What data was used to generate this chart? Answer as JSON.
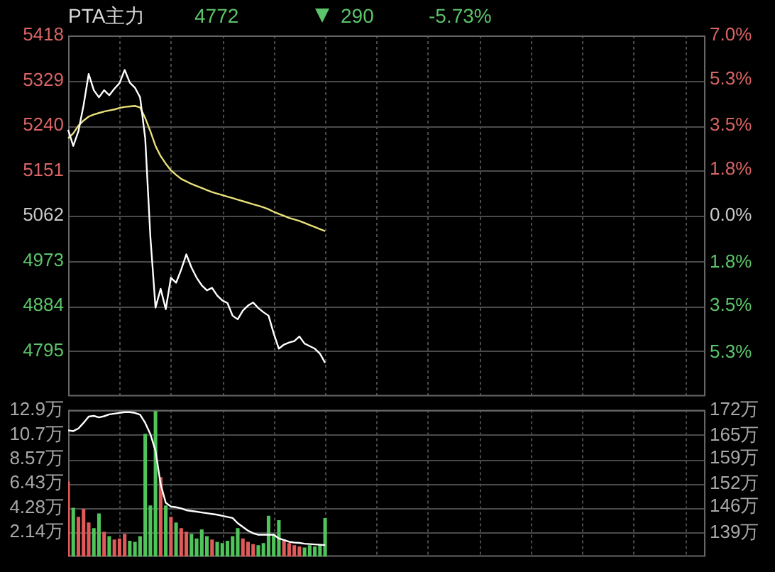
{
  "chart_data": [
    {
      "type": "line",
      "title": "PTA主力",
      "annotations": [
        "4772",
        "290",
        "-5.73%"
      ],
      "grid": true,
      "categories": [
        null,
        null,
        null,
        null,
        null,
        null,
        null,
        null,
        null,
        null,
        null,
        null,
        null,
        null,
        null,
        null,
        null,
        null,
        null,
        null,
        null,
        null,
        null,
        null,
        null,
        null,
        null,
        null,
        null,
        null,
        null,
        null,
        null,
        null,
        null,
        null,
        null,
        null,
        null,
        null,
        null,
        null,
        null,
        null,
        null,
        null,
        null,
        null,
        null,
        null,
        null,
        null,
        null,
        null,
        null,
        null,
        null,
        null,
        null,
        null,
        null,
        null,
        null,
        null,
        null,
        null,
        null,
        null,
        null,
        null,
        null,
        null,
        null,
        null,
        null,
        null,
        null,
        null,
        null,
        null,
        null,
        null,
        null,
        null,
        null,
        null,
        null,
        null,
        null,
        null,
        null,
        null,
        null,
        null,
        null,
        null,
        null,
        null,
        null,
        null,
        null,
        null,
        null,
        null,
        null,
        null,
        null,
        null,
        null,
        null,
        null,
        null,
        null,
        null,
        null,
        null,
        null,
        null,
        null,
        null,
        null,
        null,
        null,
        null,
        null
      ],
      "series": [
        {
          "color": "#ffffff",
          "values": [
            5232,
            5200,
            5229,
            5280,
            5342,
            5310,
            5296,
            5310,
            5300,
            5313,
            5324,
            5350,
            5325,
            5315,
            5296,
            5215,
            5021,
            4881,
            4918,
            4878,
            4940,
            4930,
            4956,
            4986,
            4960,
            4940,
            4925,
            4915,
            4920,
            4905,
            4895,
            4890,
            4865,
            4858,
            4875,
            4885,
            4891,
            4880,
            4872,
            4865,
            4830,
            4800,
            4808,
            4812,
            4815,
            4824,
            4810,
            4805,
            4800,
            4790,
            4772,
            null,
            null,
            null,
            null,
            null,
            null,
            null,
            null,
            null,
            null,
            null,
            null,
            null,
            null,
            null,
            null,
            null,
            null,
            null,
            null,
            null,
            null,
            null,
            null,
            null,
            null,
            null,
            null,
            null,
            null,
            null,
            null,
            null,
            null,
            null,
            null,
            null,
            null,
            null,
            null,
            null,
            null,
            null,
            null,
            null,
            null,
            null,
            null,
            null,
            null,
            null,
            null,
            null,
            null,
            null,
            null,
            null,
            null,
            null,
            null,
            null,
            null,
            null,
            null,
            null,
            null,
            null,
            null,
            null,
            null,
            null,
            null,
            null,
            null
          ]
        },
        {
          "color": "#e8e07a",
          "values": [
            5215,
            5225,
            5240,
            5250,
            5258,
            5262,
            5265,
            5268,
            5270,
            5272,
            5275,
            5277,
            5278,
            5279,
            5276,
            5255,
            5229,
            5200,
            5180,
            5165,
            5152,
            5143,
            5135,
            5130,
            5125,
            5121,
            5117,
            5113,
            5109,
            5106,
            5103,
            5100,
            5097,
            5094,
            5091,
            5088,
            5085,
            5082,
            5079,
            5075,
            5070,
            5066,
            5062,
            5058,
            5055,
            5052,
            5048,
            5044,
            5040,
            5036,
            5032,
            null,
            null,
            null,
            null,
            null,
            null,
            null,
            null,
            null,
            null,
            null,
            null,
            null,
            null,
            null,
            null,
            null,
            null,
            null,
            null,
            null,
            null,
            null,
            null,
            null,
            null,
            null,
            null,
            null,
            null,
            null,
            null,
            null,
            null,
            null,
            null,
            null,
            null,
            null,
            null,
            null,
            null,
            null,
            null,
            null,
            null,
            null,
            null,
            null,
            null,
            null,
            null,
            null,
            null,
            null,
            null,
            null,
            null,
            null,
            null,
            null,
            null,
            null,
            null,
            null,
            null,
            null,
            null,
            null,
            null,
            null,
            null,
            null,
            null
          ]
        }
      ],
      "ylim": [
        4706,
        5418
      ],
      "yticks": [
        5418,
        5329,
        5240,
        5151,
        5062,
        4973,
        4884,
        4795
      ],
      "y2lim": [
        -7.0,
        7.0
      ],
      "y2ticks": [
        {
          "value": 7.0,
          "label": "7.0%"
        },
        {
          "value": 5.3,
          "label": "5.3%"
        },
        {
          "value": 3.5,
          "label": "3.5%"
        },
        {
          "value": 1.8,
          "label": "1.8%"
        },
        {
          "value": 0.0,
          "label": "0.0%"
        },
        {
          "value": -1.8,
          "label": "1.8%"
        },
        {
          "value": -3.5,
          "label": "3.5%"
        },
        {
          "value": -5.3,
          "label": "5.3%"
        }
      ]
    },
    {
      "type": "bar",
      "grid": true,
      "categories": [
        null,
        null,
        null,
        null,
        null,
        null,
        null,
        null,
        null,
        null,
        null,
        null,
        null,
        null,
        null,
        null,
        null,
        null,
        null,
        null,
        null,
        null,
        null,
        null,
        null,
        null,
        null,
        null,
        null,
        null,
        null,
        null,
        null,
        null,
        null,
        null,
        null,
        null,
        null,
        null,
        null,
        null,
        null,
        null,
        null,
        null,
        null,
        null,
        null,
        null,
        null,
        null,
        null,
        null,
        null,
        null,
        null,
        null,
        null,
        null,
        null,
        null,
        null,
        null,
        null,
        null,
        null,
        null,
        null,
        null,
        null,
        null,
        null,
        null,
        null,
        null,
        null,
        null,
        null,
        null,
        null,
        null,
        null,
        null,
        null,
        null,
        null,
        null,
        null,
        null,
        null,
        null,
        null,
        null,
        null,
        null,
        null,
        null,
        null,
        null,
        null,
        null,
        null,
        null,
        null,
        null,
        null,
        null,
        null,
        null,
        null,
        null,
        null,
        null,
        null,
        null,
        null,
        null,
        null,
        null,
        null,
        null,
        null,
        null,
        null
      ],
      "series": [
        {
          "type": "bar",
          "colors": [
            "#e05a5a",
            "#4fc45a",
            "#e05a5a",
            "#e05a5a",
            "#e05a5a",
            "#4fc45a",
            "#4fc45a",
            "#e05a5a",
            "#4fc45a",
            "#e05a5a",
            "#e05a5a",
            "#e05a5a",
            "#4fc45a",
            "#4fc45a",
            "#4fc45a",
            "#4fc45a",
            "#4fc45a",
            "#4fc45a",
            "#e05a5a",
            "#4fc45a",
            "#e05a5a",
            "#4fc45a",
            "#e05a5a",
            "#e05a5a",
            "#4fc45a",
            "#4fc45a",
            "#4fc45a",
            "#4fc45a",
            "#e05a5a",
            "#4fc45a",
            "#4fc45a",
            "#4fc45a",
            "#4fc45a",
            "#4fc45a",
            "#e05a5a",
            "#e05a5a",
            "#e05a5a",
            "#4fc45a",
            "#4fc45a",
            "#4fc45a",
            "#4fc45a",
            "#4fc45a",
            "#e05a5a",
            "#e05a5a",
            "#e05a5a",
            "#e05a5a",
            "#4fc45a",
            "#4fc45a",
            "#4fc45a",
            "#4fc45a",
            "#4fc45a",
            null,
            null,
            null,
            null,
            null,
            null,
            null,
            null,
            null,
            null,
            null,
            null,
            null,
            null,
            null,
            null,
            null,
            null,
            null,
            null,
            null,
            null,
            null,
            null,
            null,
            null,
            null,
            null,
            null,
            null,
            null,
            null,
            null,
            null,
            null,
            null,
            null,
            null,
            null,
            null,
            null,
            null,
            null,
            null,
            null,
            null,
            null,
            null,
            null,
            null,
            null,
            null,
            null,
            null,
            null,
            null,
            null,
            null,
            null,
            null,
            null,
            null,
            null,
            null,
            null,
            null,
            null,
            null,
            null,
            null,
            null,
            null,
            null,
            null
          ],
          "values": [
            6.6,
            4.3,
            3.5,
            4.2,
            3.0,
            2.5,
            3.8,
            2.2,
            1.8,
            1.5,
            1.6,
            2.0,
            1.4,
            1.3,
            1.8,
            10.8,
            4.5,
            12.8,
            7.0,
            4.5,
            3.5,
            3.0,
            2.5,
            2.2,
            2.0,
            1.6,
            2.4,
            1.8,
            1.5,
            1.3,
            1.2,
            1.4,
            1.8,
            2.5,
            1.6,
            1.3,
            1.1,
            1.0,
            1.2,
            3.6,
            2.0,
            3.2,
            1.5,
            1.2,
            1.0,
            0.9,
            0.8,
            1.0,
            0.9,
            1.1,
            3.4,
            null,
            null,
            null,
            null,
            null,
            null,
            null,
            null,
            null,
            null,
            null,
            null,
            null,
            null,
            null,
            null,
            null,
            null,
            null,
            null,
            null,
            null,
            null,
            null,
            null,
            null,
            null,
            null,
            null,
            null,
            null,
            null,
            null,
            null,
            null,
            null,
            null,
            null,
            null,
            null,
            null,
            null,
            null,
            null,
            null,
            null,
            null,
            null,
            null,
            null,
            null,
            null,
            null,
            null,
            null,
            null,
            null,
            null,
            null,
            null,
            null,
            null,
            null,
            null,
            null,
            null,
            null,
            null,
            null,
            null,
            null,
            null,
            null,
            null
          ]
        },
        {
          "type": "line",
          "color": "#ffffff",
          "axis": "y2",
          "values": [
            166.5,
            166.3,
            167,
            168.5,
            170.2,
            170.4,
            170,
            170.3,
            170.8,
            171,
            171.2,
            171.4,
            171.4,
            171.2,
            170.7,
            168.5,
            165.5,
            161,
            152,
            147,
            146,
            145.8,
            145.5,
            145,
            144.8,
            144.6,
            144.4,
            144.2,
            144,
            143.8,
            143.5,
            143.2,
            142.9,
            141.5,
            140.5,
            139.5,
            138.8,
            138.4,
            138.4,
            138.4,
            138.4,
            137.4,
            137,
            136.5,
            136.3,
            136.2,
            136,
            135.9,
            135.8,
            135.7,
            135.6,
            null,
            null,
            null,
            null,
            null,
            null,
            null,
            null,
            null,
            null,
            null,
            null,
            null,
            null,
            null,
            null,
            null,
            null,
            null,
            null,
            null,
            null,
            null,
            null,
            null,
            null,
            null,
            null,
            null,
            null,
            null,
            null,
            null,
            null,
            null,
            null,
            null,
            null,
            null,
            null,
            null,
            null,
            null,
            null,
            null,
            null,
            null,
            null,
            null,
            null,
            null,
            null,
            null,
            null,
            null,
            null,
            null,
            null,
            null,
            null,
            null,
            null,
            null,
            null,
            null,
            null,
            null,
            null,
            null,
            null,
            null,
            null,
            null,
            null
          ]
        }
      ],
      "ylim": [
        0,
        12.9
      ],
      "yticks": [
        {
          "value": 12.9,
          "label": "12.9万"
        },
        {
          "value": 10.7,
          "label": "10.7万"
        },
        {
          "value": 8.57,
          "label": "8.57万"
        },
        {
          "value": 6.43,
          "label": "6.43万"
        },
        {
          "value": 4.28,
          "label": "4.28万"
        },
        {
          "value": 2.14,
          "label": "2.14万"
        }
      ],
      "y2lim": [
        132.5,
        172
      ],
      "y2ticks": [
        {
          "value": 172,
          "label": "172万"
        },
        {
          "value": 165,
          "label": "165万"
        },
        {
          "value": 159,
          "label": "159万"
        },
        {
          "value": 152,
          "label": "152万"
        },
        {
          "value": 146,
          "label": "146万"
        },
        {
          "value": 139,
          "label": "139万"
        }
      ]
    }
  ]
}
